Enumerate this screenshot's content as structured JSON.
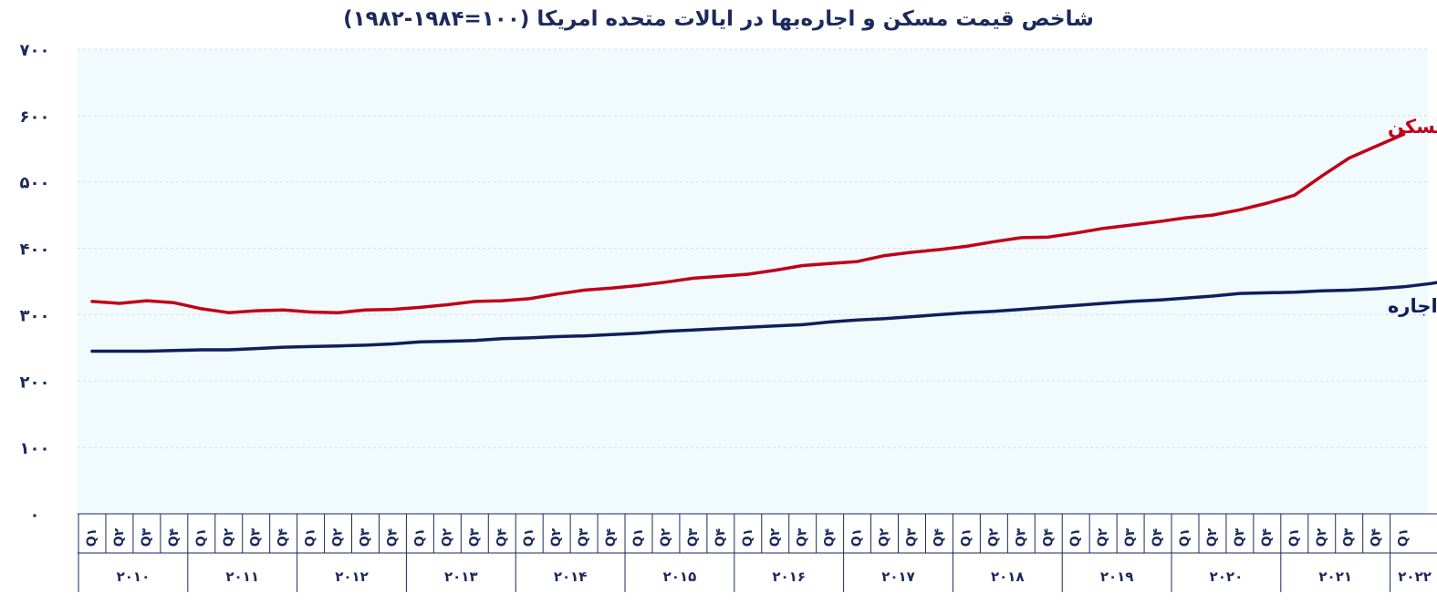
{
  "chart_data": {
    "type": "line",
    "title": "شاخص قیمت مسکن و اجاره‌بها در ایالات متحده امریکا (۱۰۰=۱۹۸۴-۱۹۸۲)",
    "xlabel": "",
    "ylabel": "",
    "ylim": [
      0,
      700
    ],
    "yticks": [
      "۰",
      "۱۰۰",
      "۲۰۰",
      "۳۰۰",
      "۴۰۰",
      "۵۰۰",
      "۶۰۰",
      "۷۰۰"
    ],
    "grid": true,
    "quarter_labels": [
      "Q۱",
      "Q۲",
      "Q۳",
      "Q۴"
    ],
    "years": [
      "۲۰۱۰",
      "۲۰۱۱",
      "۲۰۱۲",
      "۲۰۱۳",
      "۲۰۱۴",
      "۲۰۱۵",
      "۲۰۱۶",
      "۲۰۱۷",
      "۲۰۱۸",
      "۲۰۱۹",
      "۲۰۲۰",
      "۲۰۲۱",
      "۲۰۲۲"
    ],
    "series": [
      {
        "name": "شاخص قیمت مسکن",
        "color": "#c0001a",
        "values": [
          320,
          317,
          321,
          318,
          309,
          303,
          306,
          307,
          304,
          303,
          307,
          308,
          311,
          315,
          320,
          321,
          324,
          331,
          337,
          340,
          344,
          349,
          355,
          358,
          361,
          367,
          374,
          377,
          380,
          389,
          394,
          398,
          403,
          410,
          416,
          417,
          423,
          430,
          435,
          440,
          446,
          450,
          458,
          468,
          480,
          509,
          536,
          554,
          572
        ]
      },
      {
        "name": "اجاره",
        "color": "#0e1f5c",
        "values": [
          245,
          245,
          245,
          246,
          247,
          247,
          249,
          251,
          252,
          253,
          254,
          256,
          259,
          260,
          261,
          264,
          265,
          267,
          268,
          270,
          272,
          275,
          277,
          279,
          281,
          283,
          285,
          289,
          292,
          294,
          297,
          300,
          303,
          305,
          308,
          311,
          314,
          317,
          320,
          322,
          325,
          328,
          332,
          333,
          334,
          336,
          337,
          339,
          342,
          347,
          354
        ]
      }
    ]
  }
}
